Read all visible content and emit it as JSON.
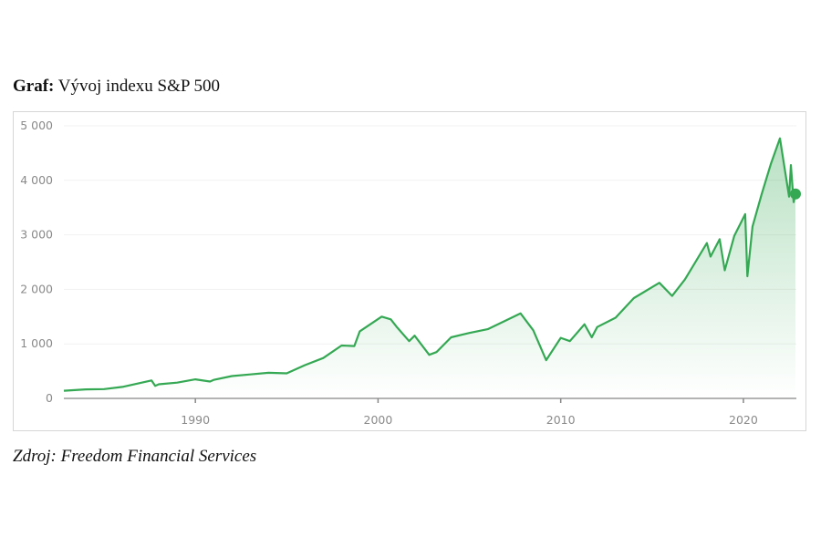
{
  "heading": {
    "label": "Graf:",
    "text": "Vývoj indexu S&P 500"
  },
  "source": "Zdroj: Freedom Financial Services",
  "chart_data": {
    "type": "area",
    "title": "",
    "xlabel": "",
    "ylabel": "",
    "xlim": [
      1982.8,
      2022.9
    ],
    "ylim": [
      0,
      5000
    ],
    "grid": true,
    "line_color": "#34a853",
    "x_ticks": [
      "1990",
      "2000",
      "2010",
      "2020"
    ],
    "y_ticks": [
      "0",
      "1 000",
      "2 000",
      "3 000",
      "4 000",
      "5 000"
    ],
    "series": [
      {
        "x": [
          1982.8,
          1984,
          1985,
          1986,
          1987.6,
          1987.8,
          1988,
          1989,
          1990,
          1990.8,
          1991,
          1992,
          1993,
          1994,
          1995,
          1996,
          1997,
          1998,
          1998.7,
          1999,
          2000.2,
          2000.7,
          2001,
          2001.7,
          2002,
          2002.8,
          2003.2,
          2004,
          2005,
          2006,
          2007,
          2007.8,
          2008.5,
          2009.2,
          2010,
          2010.5,
          2011.3,
          2011.7,
          2012,
          2013,
          2014,
          2015.4,
          2016.1,
          2016.8,
          2018.0,
          2018.2,
          2018.7,
          2018.98,
          2019.5,
          2020.1,
          2020.22,
          2020.5,
          2021,
          2021.5,
          2022.0,
          2022.5,
          2022.6,
          2022.75,
          2022.85
        ],
        "y": [
          140,
          165,
          170,
          210,
          330,
          230,
          260,
          290,
          350,
          310,
          340,
          410,
          440,
          470,
          460,
          610,
          740,
          970,
          960,
          1230,
          1500,
          1450,
          1320,
          1050,
          1150,
          800,
          850,
          1120,
          1200,
          1270,
          1430,
          1560,
          1250,
          700,
          1110,
          1050,
          1360,
          1120,
          1310,
          1480,
          1840,
          2120,
          1880,
          2180,
          2850,
          2600,
          2920,
          2350,
          2980,
          3380,
          2240,
          3150,
          3750,
          4300,
          4770,
          3700,
          4280,
          3600,
          3750
        ]
      }
    ],
    "last_point_marker": true
  }
}
